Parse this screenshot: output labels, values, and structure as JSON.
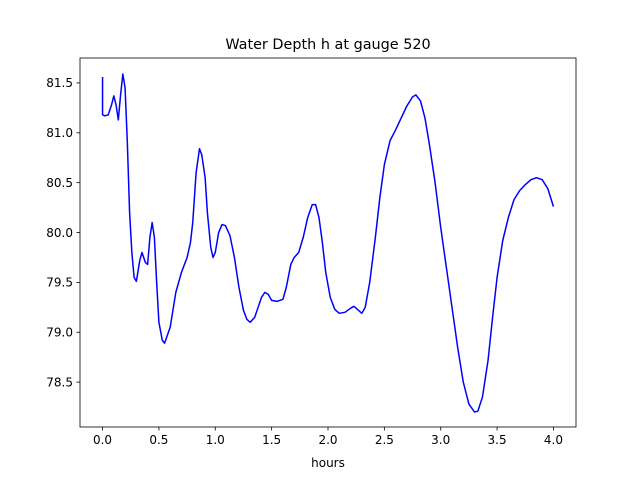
{
  "chart_data": {
    "type": "line",
    "title": "Water Depth h at gauge 520",
    "xlabel": "hours",
    "ylabel": "",
    "xlim": [
      -0.2,
      4.2
    ],
    "ylim": [
      78.05,
      81.75
    ],
    "grid": false,
    "x_ticks": [
      {
        "value": 0.0,
        "label": "0.0"
      },
      {
        "value": 0.5,
        "label": "0.5"
      },
      {
        "value": 1.0,
        "label": "1.0"
      },
      {
        "value": 1.5,
        "label": "1.5"
      },
      {
        "value": 2.0,
        "label": "2.0"
      },
      {
        "value": 2.5,
        "label": "2.5"
      },
      {
        "value": 3.0,
        "label": "3.0"
      },
      {
        "value": 3.5,
        "label": "3.5"
      },
      {
        "value": 4.0,
        "label": "4.0"
      }
    ],
    "y_ticks": [
      {
        "value": 78.5,
        "label": "78.5"
      },
      {
        "value": 79.0,
        "label": "79.0"
      },
      {
        "value": 79.5,
        "label": "79.5"
      },
      {
        "value": 80.0,
        "label": "80.0"
      },
      {
        "value": 80.5,
        "label": "80.5"
      },
      {
        "value": 81.0,
        "label": "81.0"
      },
      {
        "value": 81.5,
        "label": "81.5"
      }
    ],
    "series": [
      {
        "color": "#0000ff",
        "points": [
          [
            0.0,
            81.56
          ],
          [
            0.0,
            81.18
          ],
          [
            0.02,
            81.17
          ],
          [
            0.05,
            81.18
          ],
          [
            0.08,
            81.28
          ],
          [
            0.1,
            81.37
          ],
          [
            0.12,
            81.28
          ],
          [
            0.14,
            81.13
          ],
          [
            0.16,
            81.38
          ],
          [
            0.18,
            81.59
          ],
          [
            0.2,
            81.45
          ],
          [
            0.22,
            80.9
          ],
          [
            0.24,
            80.2
          ],
          [
            0.26,
            79.8
          ],
          [
            0.28,
            79.55
          ],
          [
            0.3,
            79.51
          ],
          [
            0.33,
            79.72
          ],
          [
            0.35,
            79.8
          ],
          [
            0.38,
            79.7
          ],
          [
            0.4,
            79.68
          ],
          [
            0.42,
            79.95
          ],
          [
            0.44,
            80.1
          ],
          [
            0.46,
            79.95
          ],
          [
            0.48,
            79.5
          ],
          [
            0.5,
            79.1
          ],
          [
            0.53,
            78.92
          ],
          [
            0.55,
            78.89
          ],
          [
            0.6,
            79.05
          ],
          [
            0.65,
            79.4
          ],
          [
            0.7,
            79.6
          ],
          [
            0.75,
            79.75
          ],
          [
            0.78,
            79.9
          ],
          [
            0.8,
            80.1
          ],
          [
            0.83,
            80.6
          ],
          [
            0.86,
            80.84
          ],
          [
            0.88,
            80.78
          ],
          [
            0.91,
            80.55
          ],
          [
            0.93,
            80.2
          ],
          [
            0.96,
            79.85
          ],
          [
            0.98,
            79.75
          ],
          [
            1.0,
            79.8
          ],
          [
            1.03,
            80.0
          ],
          [
            1.06,
            80.08
          ],
          [
            1.09,
            80.07
          ],
          [
            1.13,
            79.97
          ],
          [
            1.17,
            79.75
          ],
          [
            1.21,
            79.45
          ],
          [
            1.25,
            79.22
          ],
          [
            1.28,
            79.13
          ],
          [
            1.31,
            79.1
          ],
          [
            1.35,
            79.15
          ],
          [
            1.38,
            79.25
          ],
          [
            1.41,
            79.35
          ],
          [
            1.44,
            79.4
          ],
          [
            1.47,
            79.38
          ],
          [
            1.5,
            79.32
          ],
          [
            1.55,
            79.31
          ],
          [
            1.6,
            79.33
          ],
          [
            1.63,
            79.45
          ],
          [
            1.67,
            79.68
          ],
          [
            1.7,
            79.75
          ],
          [
            1.74,
            79.8
          ],
          [
            1.78,
            79.95
          ],
          [
            1.82,
            80.15
          ],
          [
            1.86,
            80.28
          ],
          [
            1.89,
            80.28
          ],
          [
            1.92,
            80.15
          ],
          [
            1.95,
            79.9
          ],
          [
            1.98,
            79.6
          ],
          [
            2.02,
            79.35
          ],
          [
            2.06,
            79.23
          ],
          [
            2.1,
            79.19
          ],
          [
            2.15,
            79.2
          ],
          [
            2.2,
            79.24
          ],
          [
            2.23,
            79.26
          ],
          [
            2.27,
            79.22
          ],
          [
            2.3,
            79.19
          ],
          [
            2.33,
            79.25
          ],
          [
            2.37,
            79.5
          ],
          [
            2.42,
            79.95
          ],
          [
            2.46,
            80.35
          ],
          [
            2.5,
            80.68
          ],
          [
            2.55,
            80.92
          ],
          [
            2.6,
            81.03
          ],
          [
            2.65,
            81.15
          ],
          [
            2.7,
            81.27
          ],
          [
            2.75,
            81.36
          ],
          [
            2.78,
            81.38
          ],
          [
            2.82,
            81.32
          ],
          [
            2.86,
            81.15
          ],
          [
            2.9,
            80.88
          ],
          [
            2.95,
            80.5
          ],
          [
            3.0,
            80.05
          ],
          [
            3.05,
            79.65
          ],
          [
            3.1,
            79.25
          ],
          [
            3.15,
            78.85
          ],
          [
            3.2,
            78.5
          ],
          [
            3.25,
            78.28
          ],
          [
            3.3,
            78.2
          ],
          [
            3.33,
            78.21
          ],
          [
            3.37,
            78.35
          ],
          [
            3.42,
            78.72
          ],
          [
            3.46,
            79.15
          ],
          [
            3.5,
            79.55
          ],
          [
            3.55,
            79.92
          ],
          [
            3.6,
            80.15
          ],
          [
            3.65,
            80.33
          ],
          [
            3.7,
            80.42
          ],
          [
            3.75,
            80.48
          ],
          [
            3.8,
            80.53
          ],
          [
            3.85,
            80.55
          ],
          [
            3.9,
            80.53
          ],
          [
            3.95,
            80.44
          ],
          [
            4.0,
            80.26
          ]
        ]
      }
    ]
  }
}
